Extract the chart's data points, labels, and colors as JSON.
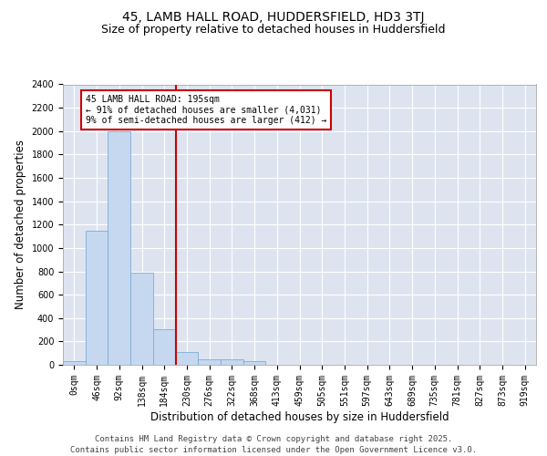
{
  "title_line1": "45, LAMB HALL ROAD, HUDDERSFIELD, HD3 3TJ",
  "title_line2": "Size of property relative to detached houses in Huddersfield",
  "xlabel": "Distribution of detached houses by size in Huddersfield",
  "ylabel": "Number of detached properties",
  "bar_labels": [
    "0sqm",
    "46sqm",
    "92sqm",
    "138sqm",
    "184sqm",
    "230sqm",
    "276sqm",
    "322sqm",
    "368sqm",
    "413sqm",
    "459sqm",
    "505sqm",
    "551sqm",
    "597sqm",
    "643sqm",
    "689sqm",
    "735sqm",
    "781sqm",
    "827sqm",
    "873sqm",
    "919sqm"
  ],
  "bar_values": [
    35,
    1150,
    2000,
    790,
    305,
    110,
    50,
    45,
    30,
    0,
    0,
    0,
    0,
    0,
    0,
    0,
    0,
    0,
    0,
    0,
    0
  ],
  "bar_color": "#c5d8f0",
  "bar_edgecolor": "#7aadd4",
  "plot_bg_color": "#dde4f0",
  "fig_bg_color": "#ffffff",
  "grid_color": "#ffffff",
  "vline_x": 4.5,
  "vline_color": "#cc0000",
  "annotation_text": "45 LAMB HALL ROAD: 195sqm\n← 91% of detached houses are smaller (4,031)\n9% of semi-detached houses are larger (412) →",
  "annotation_box_color": "#cc0000",
  "ylim": [
    0,
    2400
  ],
  "yticks": [
    0,
    200,
    400,
    600,
    800,
    1000,
    1200,
    1400,
    1600,
    1800,
    2000,
    2200,
    2400
  ],
  "footer_line1": "Contains HM Land Registry data © Crown copyright and database right 2025.",
  "footer_line2": "Contains public sector information licensed under the Open Government Licence v3.0.",
  "title_fontsize": 10,
  "subtitle_fontsize": 9,
  "axis_label_fontsize": 8.5,
  "tick_fontsize": 7,
  "footer_fontsize": 6.5
}
